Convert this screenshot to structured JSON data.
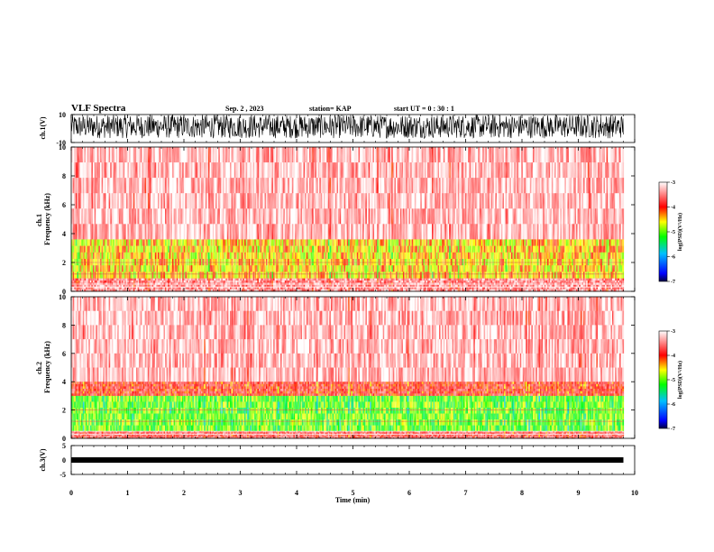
{
  "header": {
    "title": "VLF Spectra",
    "date": "Sep. 2 , 2023",
    "station": "station= KAP",
    "start_ut": "start UT =  0 : 30 : 1"
  },
  "chart_data": [
    {
      "type": "line",
      "panel": "ch1-waveform",
      "ylabel": "ch.1(V)",
      "ylim": [
        -10,
        10
      ],
      "yticks": [
        "10",
        "-10"
      ],
      "xlim": [
        0,
        10
      ],
      "note_values": "dense noise-like waveform spanning roughly -7 to +10 V over 0-9.8 min",
      "color": "#000000"
    },
    {
      "type": "heatmap",
      "panel": "ch1-spectrogram",
      "ylabel": "ch.1 Frequency (kHz)",
      "ylim": [
        0,
        10
      ],
      "yticks": [
        "0",
        "2",
        "4",
        "6",
        "8",
        "10"
      ],
      "xlim": [
        0,
        10
      ],
      "data_end_min": 9.8,
      "colorbar": {
        "label": "log(PSD)(V²/Hz)",
        "range": [
          -7,
          -3
        ],
        "ticks": [
          "-3",
          "-4",
          "-5",
          "-6",
          "-7"
        ]
      },
      "bands_khz": [
        {
          "from": 3.6,
          "to": 10,
          "level": -3.3
        },
        {
          "from": 0.9,
          "to": 3.6,
          "level": -4.5
        },
        {
          "from": 0,
          "to": 0.9,
          "level": -3.5
        }
      ]
    },
    {
      "type": "heatmap",
      "panel": "ch2-spectrogram",
      "ylabel": "ch.2 Frequency (kHz)",
      "ylim": [
        0,
        10
      ],
      "yticks": [
        "0",
        "2",
        "4",
        "6",
        "8",
        "10"
      ],
      "xlim": [
        0,
        10
      ],
      "data_end_min": 9.8,
      "colorbar": {
        "label": "log(PSD)(V²/Hz)",
        "range": [
          -7,
          -3
        ],
        "ticks": [
          "-3",
          "-4",
          "-5",
          "-6",
          "-7"
        ]
      },
      "bands_khz": [
        {
          "from": 4.0,
          "to": 10,
          "level": -3.3
        },
        {
          "from": 3.0,
          "to": 4.0,
          "level": -3.9
        },
        {
          "from": 0.5,
          "to": 3.0,
          "level": -5.0
        },
        {
          "from": 0,
          "to": 0.5,
          "level": -3.7
        }
      ]
    },
    {
      "type": "line",
      "panel": "ch3-waveform",
      "ylabel": "ch.3(V)",
      "ylim": [
        -5,
        5
      ],
      "yticks": [
        "5",
        "0",
        "-5"
      ],
      "xlim": [
        0,
        10
      ],
      "xlabel": "Time (min)",
      "xticks": [
        "0",
        "1",
        "2",
        "3",
        "4",
        "5",
        "6",
        "7",
        "8",
        "9",
        "10"
      ],
      "note_values": "narrow band around -2 V from 0 to 9.8 min",
      "color": "#000000"
    }
  ]
}
